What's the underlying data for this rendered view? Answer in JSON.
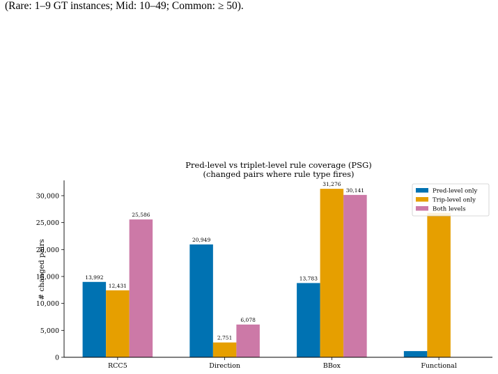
{
  "caption": {
    "text": "(Rare: 1–9 GT instances; Mid: 10–49; Common: ≥ 50)."
  },
  "chart_data": {
    "type": "bar",
    "title": "Pred-level vs triplet-level rule coverage (PSG)",
    "subtitle": "(changed pairs where rule type fires)",
    "xlabel": "",
    "ylabel": "# changed pairs",
    "categories": [
      "RCC5",
      "Direction",
      "BBox",
      "Functional"
    ],
    "series": [
      {
        "name": "Pred-level only",
        "color": "#0072b2",
        "values": [
          13992,
          20949,
          13783,
          1150
        ]
      },
      {
        "name": "Trip-level only",
        "color": "#e69f00",
        "values": [
          12431,
          2751,
          31276,
          26800
        ]
      },
      {
        "name": "Both levels",
        "color": "#cc79a7",
        "values": [
          25586,
          6078,
          30141,
          0
        ]
      }
    ],
    "data_labels": [
      [
        "13,992",
        "12,431",
        "25,586"
      ],
      [
        "20,949",
        "2,751",
        "6,078"
      ],
      [
        "13,783",
        "31,276",
        "30,141"
      ],
      [
        "",
        "",
        ""
      ]
    ],
    "yticks": [
      0,
      5000,
      10000,
      15000,
      20000,
      25000,
      30000
    ],
    "ytick_labels": [
      "0",
      "5,000",
      "10,000",
      "15,000",
      "20,000",
      "25,000",
      "30,000"
    ],
    "ylim": [
      0,
      32840
    ],
    "grid": false,
    "legend": "top-right"
  }
}
